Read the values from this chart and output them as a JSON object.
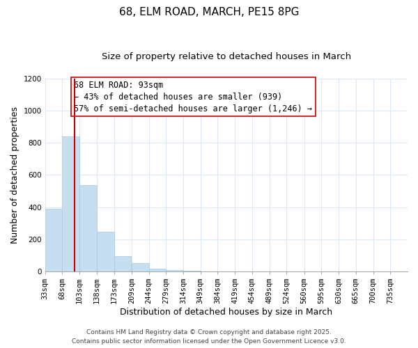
{
  "title": "68, ELM ROAD, MARCH, PE15 8PG",
  "subtitle": "Size of property relative to detached houses in March",
  "xlabel": "Distribution of detached houses by size in March",
  "ylabel": "Number of detached properties",
  "bar_labels": [
    "33sqm",
    "68sqm",
    "103sqm",
    "138sqm",
    "173sqm",
    "209sqm",
    "244sqm",
    "279sqm",
    "314sqm",
    "349sqm",
    "384sqm",
    "419sqm",
    "454sqm",
    "489sqm",
    "524sqm",
    "560sqm",
    "595sqm",
    "630sqm",
    "665sqm",
    "700sqm",
    "735sqm"
  ],
  "bar_values": [
    390,
    840,
    535,
    248,
    97,
    52,
    18,
    8,
    3,
    0,
    0,
    0,
    0,
    0,
    0,
    0,
    0,
    0,
    0,
    0,
    0
  ],
  "bar_color": "#c5dff0",
  "bar_edge_color": "#a8c8e0",
  "property_label": "68 ELM ROAD: 93sqm",
  "annotation_line1": "← 43% of detached houses are smaller (939)",
  "annotation_line2": "57% of semi-detached houses are larger (1,246) →",
  "vline_x": 93,
  "vline_color": "#cc0000",
  "ylim": [
    0,
    1200
  ],
  "yticks": [
    0,
    200,
    400,
    600,
    800,
    1000,
    1200
  ],
  "footer1": "Contains HM Land Registry data © Crown copyright and database right 2025.",
  "footer2": "Contains public sector information licensed under the Open Government Licence v3.0.",
  "title_fontsize": 11,
  "subtitle_fontsize": 9.5,
  "axis_label_fontsize": 9,
  "tick_fontsize": 7.5,
  "annotation_fontsize": 8.5,
  "footer_fontsize": 6.5,
  "bin_width": 35
}
